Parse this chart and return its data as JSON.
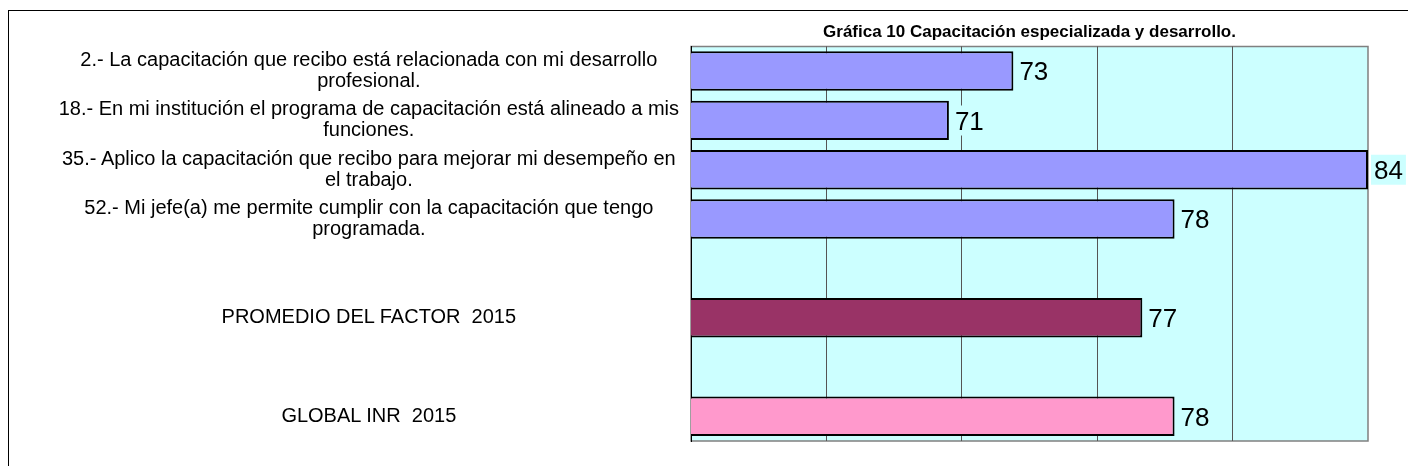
{
  "chart_data": {
    "type": "bar",
    "orientation": "horizontal",
    "title": "Gráfica 10 Capacitación especializada y desarrollo.",
    "categories": [
      "2.- La capacitación que recibo está relacionada con mi desarrollo profesional.",
      "18.- En mi institución el programa de capacitación está alineado a mis funciones.",
      "35.- Aplico la capacitación que recibo para mejorar mi desempeño en el trabajo.",
      "52.- Mi jefe(a) me permite cumplir con la capacitación que tengo programada.",
      null,
      "PROMEDIO DEL FACTOR  2015",
      null,
      "GLOBAL INR  2015"
    ],
    "values": [
      73,
      71,
      84,
      78,
      null,
      77,
      null,
      78
    ],
    "colors": [
      "#9999ff",
      "#9999ff",
      "#9999ff",
      "#9999ff",
      "#9999ff",
      "#993366",
      "#9999ff",
      "#ff99cc"
    ],
    "xlim": [
      63,
      84
    ],
    "xticks": [
      {
        "value": 67.2,
        "label": null
      },
      {
        "value": 71.4,
        "label": null
      },
      {
        "value": 75.6,
        "label": null
      },
      {
        "value": 79.8,
        "label": null
      }
    ],
    "tick_labels": "y",
    "grid": "x",
    "data_labels": true,
    "legend": false
  }
}
